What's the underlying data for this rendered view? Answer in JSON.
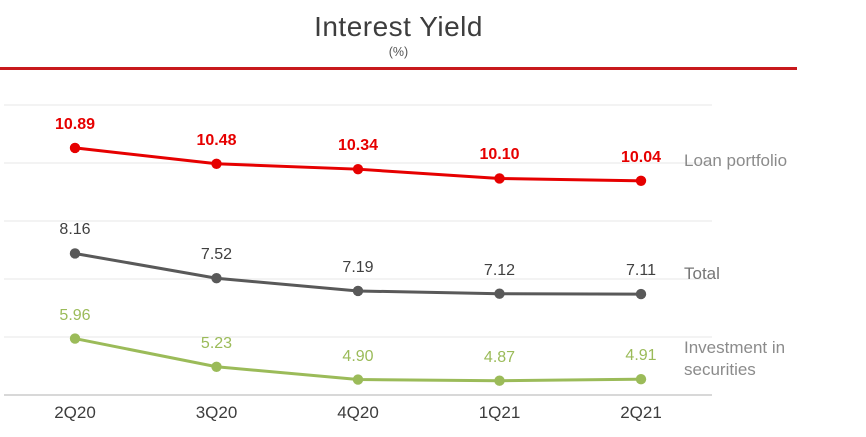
{
  "chart_data": {
    "type": "line",
    "title": "Interest Yield",
    "subtitle": "(%)",
    "categories": [
      "2Q20",
      "3Q20",
      "4Q20",
      "1Q21",
      "2Q21"
    ],
    "series": [
      {
        "name": "Loan portfolio",
        "color": "#e60000",
        "label_color": "#e60000",
        "legend_color": "#8b8b8b",
        "values": [
          10.89,
          10.48,
          10.34,
          10.1,
          10.04
        ]
      },
      {
        "name": "Total",
        "color": "#595959",
        "label_color": "#404040",
        "legend_color": "#757575",
        "values": [
          8.16,
          7.52,
          7.19,
          7.12,
          7.11
        ]
      },
      {
        "name": "Investment in securities",
        "color": "#9bbb59",
        "label_color": "#9bbb59",
        "legend_color": "#8b8b8b",
        "values": [
          5.96,
          5.23,
          4.9,
          4.87,
          4.91
        ]
      }
    ],
    "ylim": [
      4.5,
      12
    ],
    "gridline_values": [
      12,
      10.5,
      9,
      7.5,
      6,
      4.5
    ],
    "grid": true,
    "legend_position": "right",
    "accent_divider_color": "#c8191c",
    "gridline_color": "#ececec",
    "axis_line_color": "#cccccc"
  }
}
